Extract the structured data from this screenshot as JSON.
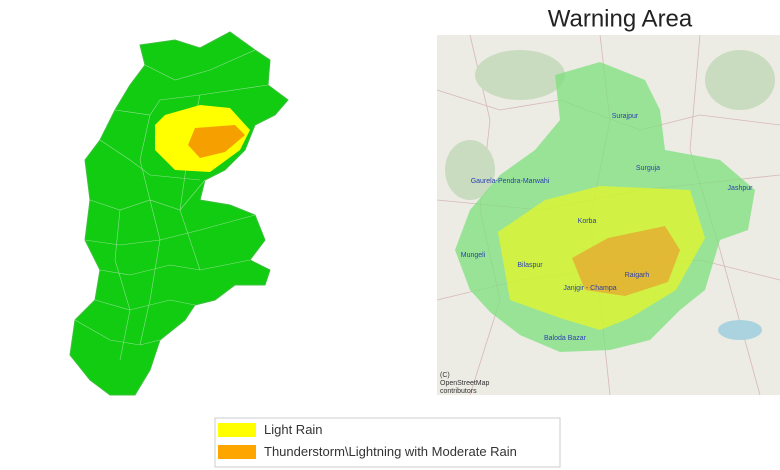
{
  "title": "Warning Area",
  "map_labels": [
    "Surajpur",
    "Surguja",
    "Jashpur",
    "Gaurela-Pendra-Marwahi",
    "Korba",
    "Mungeli",
    "Bilaspur",
    "Raigarh",
    "Janjgir - Champa",
    "Baloda Bazar"
  ],
  "attribution": [
    "(C)",
    "OpenStreetMap",
    "contributors"
  ],
  "legend": [
    {
      "label": "Light Rain",
      "color": "#ffff00"
    },
    {
      "label": "Thunderstorm\\Lightning with Moderate Rain",
      "color": "#ffa500"
    }
  ]
}
